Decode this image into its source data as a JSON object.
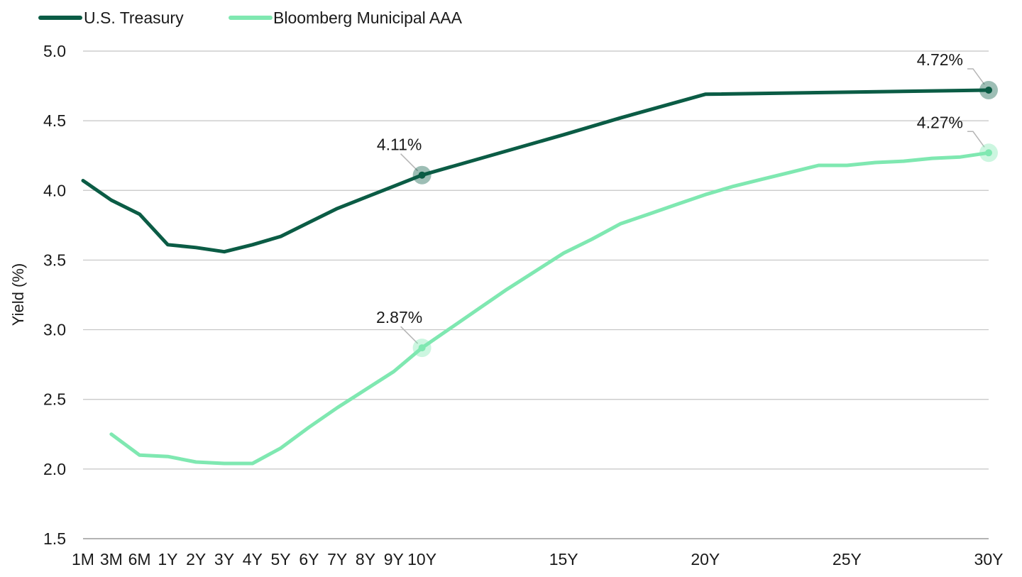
{
  "chart_data": {
    "type": "line",
    "title": "",
    "xlabel": "",
    "ylabel": "Yield (%)",
    "ylim": [
      1.5,
      5.0
    ],
    "yticks": [
      "5.0",
      "4.5",
      "4.0",
      "3.5",
      "3.0",
      "2.5",
      "2.0",
      "1.5"
    ],
    "grid": true,
    "legend_position": "top-left",
    "x_major_labels": [
      "1M",
      "3M",
      "6M",
      "1Y",
      "2Y",
      "3Y",
      "4Y",
      "5Y",
      "6Y",
      "7Y",
      "8Y",
      "9Y",
      "10Y",
      "15Y",
      "20Y",
      "25Y",
      "30Y"
    ],
    "series": [
      {
        "name": "U.S. Treasury",
        "color": "#0b5c45",
        "points": [
          [
            "1M",
            4.07
          ],
          [
            "3M",
            3.93
          ],
          [
            "6M",
            3.83
          ],
          [
            "1Y",
            3.61
          ],
          [
            "2Y",
            3.59
          ],
          [
            "3Y",
            3.56
          ],
          [
            "4Y",
            3.61
          ],
          [
            "5Y",
            3.67
          ],
          [
            "6Y",
            3.77
          ],
          [
            "7Y",
            3.87
          ],
          [
            "8Y",
            3.95
          ],
          [
            "9Y",
            4.03
          ],
          [
            "10Y",
            4.11
          ],
          [
            "15Y",
            4.4
          ],
          [
            "17Y",
            4.52
          ],
          [
            "20Y",
            4.69
          ],
          [
            "30Y",
            4.72
          ]
        ],
        "annotations": [
          {
            "x": "10Y",
            "label": "4.11%"
          },
          {
            "x": "30Y",
            "label": "4.72%"
          }
        ]
      },
      {
        "name": "Bloomberg Municipal AAA",
        "color": "#7fe8b1",
        "points": [
          [
            "3M",
            2.25
          ],
          [
            "6M",
            2.1
          ],
          [
            "1Y",
            2.09
          ],
          [
            "2Y",
            2.05
          ],
          [
            "3Y",
            2.04
          ],
          [
            "4Y",
            2.04
          ],
          [
            "5Y",
            2.15
          ],
          [
            "6Y",
            2.3
          ],
          [
            "7Y",
            2.44
          ],
          [
            "8Y",
            2.57
          ],
          [
            "9Y",
            2.7
          ],
          [
            "10Y",
            2.87
          ],
          [
            "11Y",
            3.01
          ],
          [
            "12Y",
            3.15
          ],
          [
            "13Y",
            3.29
          ],
          [
            "14Y",
            3.42
          ],
          [
            "15Y",
            3.55
          ],
          [
            "16Y",
            3.65
          ],
          [
            "17Y",
            3.76
          ],
          [
            "18Y",
            3.83
          ],
          [
            "19Y",
            3.9
          ],
          [
            "20Y",
            3.97
          ],
          [
            "21Y",
            4.03
          ],
          [
            "22Y",
            4.08
          ],
          [
            "23Y",
            4.13
          ],
          [
            "24Y",
            4.18
          ],
          [
            "25Y",
            4.18
          ],
          [
            "26Y",
            4.2
          ],
          [
            "27Y",
            4.21
          ],
          [
            "28Y",
            4.23
          ],
          [
            "29Y",
            4.24
          ],
          [
            "30Y",
            4.27
          ]
        ],
        "annotations": [
          {
            "x": "10Y",
            "label": "2.87%"
          },
          {
            "x": "30Y",
            "label": "4.27%"
          }
        ]
      }
    ]
  }
}
